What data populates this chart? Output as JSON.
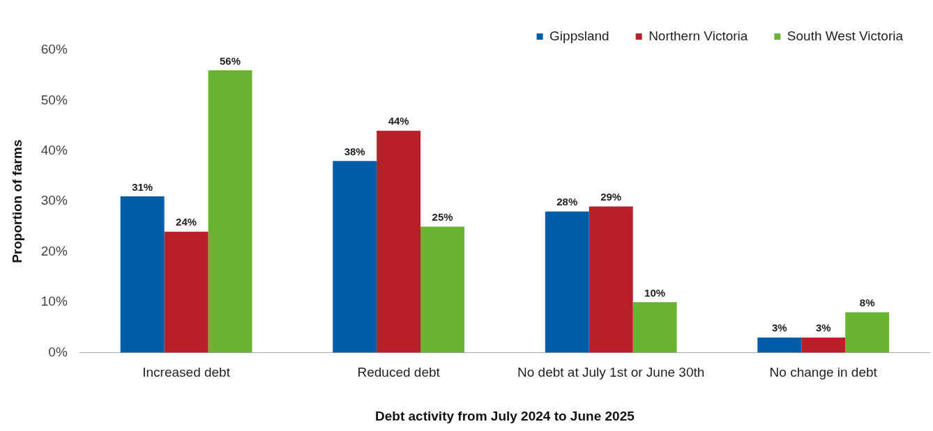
{
  "chart_data": {
    "type": "bar",
    "xlabel": "Debt activity from July 2024 to June 2025",
    "ylabel": "Proportion of farms",
    "categories": [
      "Increased debt",
      "Reduced debt",
      "No debt at July 1st or June 30th",
      "No change in debt"
    ],
    "series": [
      {
        "name": "Gippsland",
        "color": "#005ea6",
        "values": [
          31,
          38,
          28,
          3
        ],
        "value_labels": [
          "31%",
          "38%",
          "28%",
          "3%"
        ]
      },
      {
        "name": "Northern Victoria",
        "color": "#b81f2a",
        "values": [
          24,
          44,
          29,
          3
        ],
        "value_labels": [
          "24%",
          "44%",
          "29%",
          "3%"
        ]
      },
      {
        "name": "South West Victoria",
        "color": "#69b432",
        "values": [
          56,
          25,
          10,
          8
        ],
        "value_labels": [
          "56%",
          "25%",
          "10%",
          "8%"
        ]
      }
    ],
    "ylim": [
      0,
      60
    ],
    "yticks": [
      {
        "value": 0,
        "label": "0%"
      },
      {
        "value": 10,
        "label": "10%"
      },
      {
        "value": 20,
        "label": "20%"
      },
      {
        "value": 30,
        "label": "30%"
      },
      {
        "value": 40,
        "label": "40%"
      },
      {
        "value": 50,
        "label": "50%"
      },
      {
        "value": 60,
        "label": "60%"
      }
    ],
    "legend": "top right",
    "grid": false
  }
}
